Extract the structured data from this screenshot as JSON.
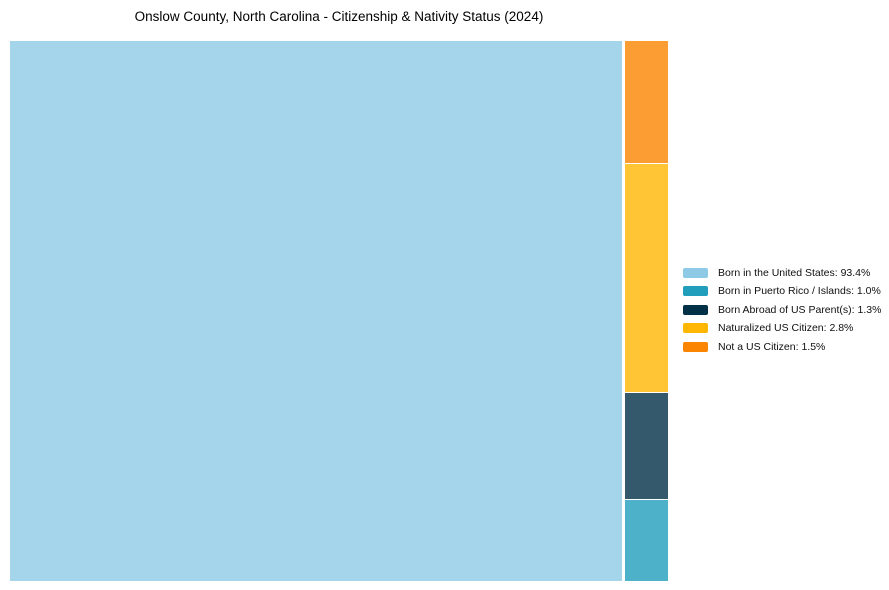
{
  "title": "Onslow County, North Carolina - Citizenship & Nativity Status (2024)",
  "chart_data": {
    "type": "treemap",
    "title": "Onslow County, North Carolina - Citizenship & Nativity Status (2024)",
    "categories": [
      "Born in the United States",
      "Born in Puerto Rico / Islands",
      "Born Abroad of US Parent(s)",
      "Naturalized US Citizen",
      "Not a US Citizen"
    ],
    "values": [
      93.4,
      1.0,
      1.3,
      2.8,
      1.5
    ],
    "colors": [
      "#8ECAE6",
      "#219EBC",
      "#023047",
      "#FFB703",
      "#FB8500"
    ],
    "cell_opacity": 0.8,
    "layout": {
      "main_cell_index": 0,
      "right_column_order_top_to_bottom": [
        4,
        3,
        2,
        1
      ],
      "legend_position": "right",
      "grid": false
    },
    "legend_entries": [
      {
        "label": "Born in the United States: 93.4%",
        "color": "#8ECAE6"
      },
      {
        "label": "Born in Puerto Rico / Islands: 1.0%",
        "color": "#219EBC"
      },
      {
        "label": "Born Abroad of US Parent(s): 1.3%",
        "color": "#023047"
      },
      {
        "label": "Naturalized US Citizen: 2.8%",
        "color": "#FFB703"
      },
      {
        "label": "Not a US Citizen: 1.5%",
        "color": "#FB8500"
      }
    ]
  }
}
